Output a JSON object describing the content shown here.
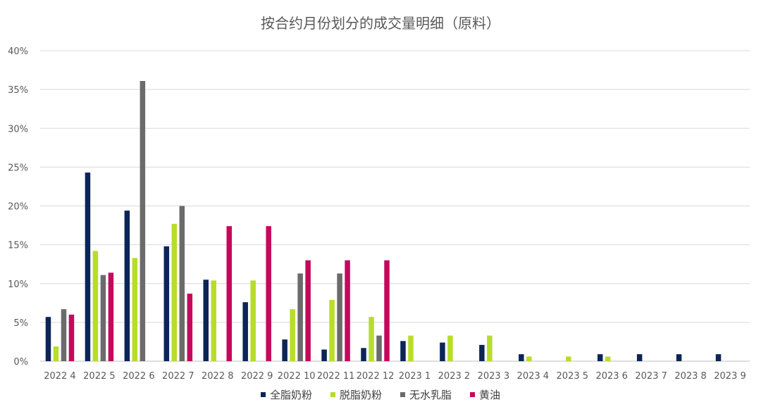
{
  "chart_data": {
    "type": "bar",
    "title": "按合约月份划分的成交量明细（原料）",
    "xlabel": "",
    "ylabel": "",
    "ylim": [
      0,
      40
    ],
    "yticks": [
      "0%",
      "5%",
      "10%",
      "15%",
      "20%",
      "25%",
      "30%",
      "35%",
      "40%"
    ],
    "grid": true,
    "legend_position": "bottom",
    "categories": [
      "2022 4",
      "2022 5",
      "2022 6",
      "2022 7",
      "2022 8",
      "2022 9",
      "2022 10",
      "2022 11",
      "2022 12",
      "2023 1",
      "2023 2",
      "2023 3",
      "2023 4",
      "2023 5",
      "2023 6",
      "2023 7",
      "2023 8",
      "2023 9"
    ],
    "series": [
      {
        "name": "全脂奶粉",
        "color": "#0c2557",
        "values": [
          5.7,
          24.3,
          19.4,
          14.8,
          10.5,
          7.6,
          2.8,
          1.5,
          1.7,
          2.6,
          2.4,
          2.1,
          0.9,
          0,
          0.9,
          0.9,
          0.9,
          0.9
        ]
      },
      {
        "name": "脱脂奶粉",
        "color": "#b7dd29",
        "values": [
          1.9,
          14.2,
          13.3,
          17.7,
          10.4,
          10.4,
          6.7,
          7.9,
          5.7,
          3.3,
          3.3,
          3.3,
          0.6,
          0.6,
          0.6,
          0,
          0,
          0
        ]
      },
      {
        "name": "无水乳脂",
        "color": "#6b6b6b",
        "values": [
          6.7,
          11.1,
          36.1,
          20.0,
          0,
          0,
          11.3,
          11.3,
          3.3,
          0,
          0,
          0,
          0,
          0,
          0,
          0,
          0,
          0
        ]
      },
      {
        "name": "黄油",
        "color": "#c4095c",
        "values": [
          6.0,
          11.4,
          0,
          8.7,
          17.4,
          17.4,
          13.0,
          13.0,
          13.0,
          0,
          0,
          0,
          0,
          0,
          0,
          0,
          0,
          0
        ]
      }
    ]
  }
}
